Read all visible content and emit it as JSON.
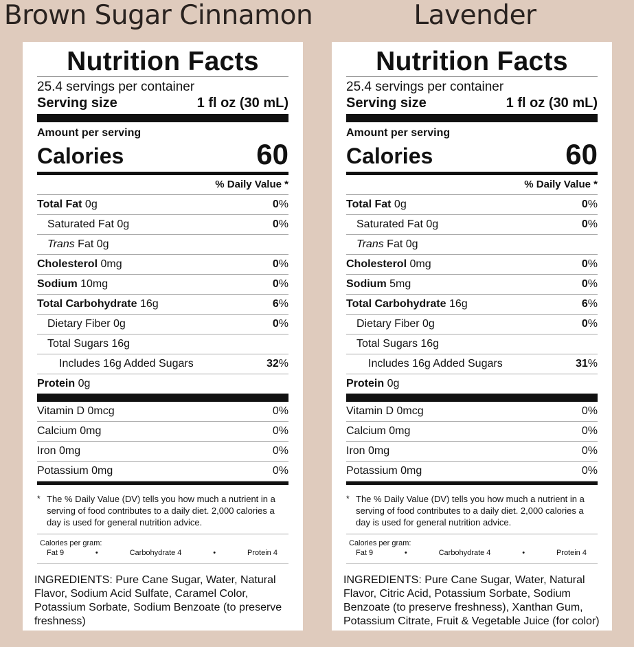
{
  "flavors": [
    "Brown Sugar Cinnamon",
    "Lavender"
  ],
  "labels": [
    {
      "title": "Nutrition Facts",
      "servings": "25.4 servings per container",
      "serving_size_label": "Serving size",
      "serving_size_value": "1 fl oz (30 mL)",
      "amount_per_serving": "Amount per serving",
      "calories_label": "Calories",
      "calories_value": "60",
      "dv_header": "% Daily Value *",
      "nutrients": [
        {
          "name": "Total Fat",
          "amount": " 0g",
          "dv": "0",
          "pct": "%"
        },
        {
          "name": "Saturated Fat",
          "amount": " 0g",
          "dv": "0",
          "pct": "%"
        },
        {
          "name": "Trans",
          "amount": " Fat 0g"
        },
        {
          "name": "Cholesterol",
          "amount": " 0mg",
          "dv": "0",
          "pct": "%"
        },
        {
          "name": "Sodium",
          "amount": " 10mg",
          "dv": "0",
          "pct": "%"
        },
        {
          "name": "Total Carbohydrate",
          "amount": " 16g",
          "dv": "6",
          "pct": "%"
        },
        {
          "name": "Dietary Fiber",
          "amount": " 0g",
          "dv": "0",
          "pct": "%"
        },
        {
          "name": "Total Sugars",
          "amount": " 16g"
        },
        {
          "name": "Includes 16g Added Sugars",
          "dv": "32",
          "pct": "%"
        },
        {
          "name": "Protein",
          "amount": " 0g"
        }
      ],
      "vitamins": [
        {
          "name": "Vitamin D 0mcg",
          "dv": "0%"
        },
        {
          "name": "Calcium 0mg",
          "dv": "0%"
        },
        {
          "name": "Iron 0mg",
          "dv": "0%"
        },
        {
          "name": "Potassium 0mg",
          "dv": "0%"
        }
      ],
      "footnote_star": "*",
      "footnote": "The % Daily Value (DV) tells you how much a nutrient in a serving of food contributes to a daily diet. 2,000 calories a day is used for general nutrition advice.",
      "cal_per_gram_label": "Calories per gram:",
      "cal_per_gram": [
        "Fat 9",
        "•",
        "Carbohydrate 4",
        "•",
        "Protein 4"
      ],
      "ingredients": "INGREDIENTS: Pure Cane Sugar, Water, Natural Flavor, Sodium Acid Sulfate, Caramel Color, Potassium Sorbate, Sodium Benzoate (to preserve freshness)"
    },
    {
      "title": "Nutrition Facts",
      "servings": "25.4 servings per container",
      "serving_size_label": "Serving size",
      "serving_size_value": "1 fl oz (30 mL)",
      "amount_per_serving": "Amount per serving",
      "calories_label": "Calories",
      "calories_value": "60",
      "dv_header": "% Daily Value *",
      "nutrients": [
        {
          "name": "Total Fat",
          "amount": " 0g",
          "dv": "0",
          "pct": "%"
        },
        {
          "name": "Saturated Fat",
          "amount": " 0g",
          "dv": "0",
          "pct": "%"
        },
        {
          "name": "Trans",
          "amount": " Fat 0g"
        },
        {
          "name": "Cholesterol",
          "amount": " 0mg",
          "dv": "0",
          "pct": "%"
        },
        {
          "name": "Sodium",
          "amount": " 5mg",
          "dv": "0",
          "pct": "%"
        },
        {
          "name": "Total Carbohydrate",
          "amount": " 16g",
          "dv": "6",
          "pct": "%"
        },
        {
          "name": "Dietary Fiber",
          "amount": " 0g",
          "dv": "0",
          "pct": "%"
        },
        {
          "name": "Total Sugars",
          "amount": " 16g"
        },
        {
          "name": "Includes 16g Added Sugars",
          "dv": "31",
          "pct": "%"
        },
        {
          "name": "Protein",
          "amount": " 0g"
        }
      ],
      "vitamins": [
        {
          "name": "Vitamin D 0mcg",
          "dv": "0%"
        },
        {
          "name": "Calcium 0mg",
          "dv": "0%"
        },
        {
          "name": "Iron 0mg",
          "dv": "0%"
        },
        {
          "name": "Potassium 0mg",
          "dv": "0%"
        }
      ],
      "footnote_star": "*",
      "footnote": "The % Daily Value (DV) tells you how much a nutrient in a serving of food contributes to a daily diet. 2,000 calories a day is used for general nutrition advice.",
      "cal_per_gram_label": "Calories per gram:",
      "cal_per_gram": [
        "Fat 9",
        "•",
        "Carbohydrate 4",
        "•",
        "Protein 4"
      ],
      "ingredients": "INGREDIENTS: Pure Cane Sugar, Water, Natural Flavor, Citric Acid, Potassium Sorbate, Sodium Benzoate (to preserve freshness), Xanthan Gum, Potassium Citrate, Fruit & Vegetable Juice (for color)"
    }
  ]
}
